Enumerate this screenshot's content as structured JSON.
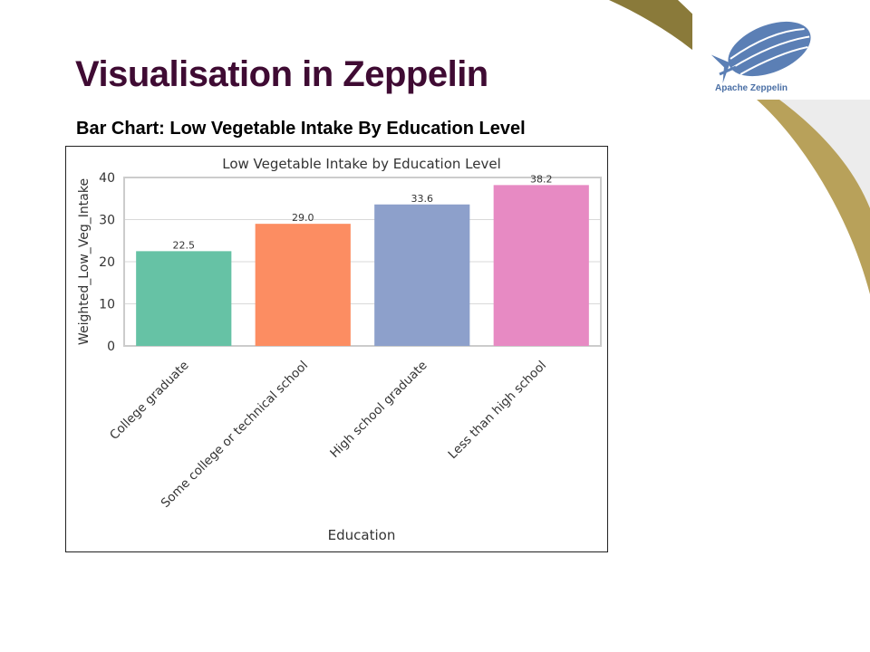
{
  "slide": {
    "title": "Visualisation in Zeppelin",
    "subtitle": "Bar Chart: Low Vegetable Intake By Education Level"
  },
  "logo": {
    "text": "Apache Zeppelin",
    "icon": "zeppelin-airship-icon",
    "color": "#5b7fb5"
  },
  "colors": {
    "title": "#3f0b33",
    "decor_dark": "#8a7a3a",
    "decor_light": "#b8a15a",
    "decor_grey": "#e6e6e6"
  },
  "chart_data": {
    "type": "bar",
    "title": "Low Vegetable Intake by Education Level",
    "xlabel": "Education",
    "ylabel": "Weighted_Low_Veg_Intake",
    "categories": [
      "College graduate",
      "Some college or technical school",
      "High school graduate",
      "Less than high school"
    ],
    "values": [
      22.5,
      29.0,
      33.6,
      38.2
    ],
    "value_labels": [
      "22.5",
      "29.0",
      "33.6",
      "38.2"
    ],
    "colors": [
      "#66c2a5",
      "#fc8d62",
      "#8da0cb",
      "#e78ac3"
    ],
    "ylim": [
      0,
      40
    ],
    "yticks": [
      0,
      10,
      20,
      30,
      40
    ],
    "grid": true
  }
}
